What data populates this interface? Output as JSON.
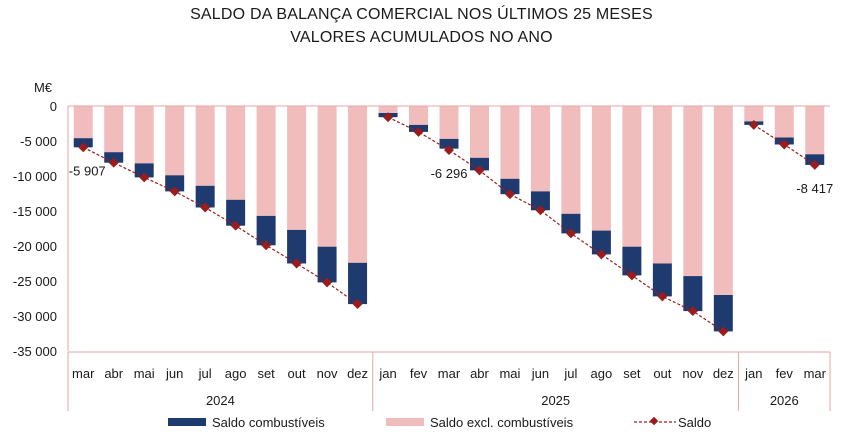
{
  "chart_data": {
    "type": "bar",
    "title": "SALDO DA BALANÇA COMERCIAL NOS ÚLTIMOS 25 MESES",
    "subtitle": "VALORES ACUMULADOS NO ANO",
    "ylabel": "M€",
    "ylim": [
      -35000,
      0
    ],
    "yticks": [
      0,
      -5000,
      -10000,
      -15000,
      -20000,
      -25000,
      -30000,
      -35000
    ],
    "ytick_labels": [
      "0",
      "-5 000",
      "-10 000",
      "-15 000",
      "-20 000",
      "-25 000",
      "-30 000",
      "-35 000"
    ],
    "stacked": true,
    "grid": false,
    "legend_position": "bottom",
    "categories": [
      "mar",
      "abr",
      "mai",
      "jun",
      "jul",
      "ago",
      "set",
      "out",
      "nov",
      "dez",
      "jan",
      "fev",
      "mar",
      "abr",
      "mai",
      "jun",
      "jul",
      "ago",
      "set",
      "out",
      "nov",
      "dez",
      "jan",
      "fev",
      "mar"
    ],
    "groups": [
      {
        "label": "2024",
        "count": 10
      },
      {
        "label": "2025",
        "count": 12
      },
      {
        "label": "2026",
        "count": 3
      }
    ],
    "series": [
      {
        "name": "Saldo excl. combustíveis",
        "color": "#f0bcbc",
        "kind": "bar",
        "values": [
          -4600,
          -6600,
          -8200,
          -9900,
          -11400,
          -13400,
          -15700,
          -17700,
          -20100,
          -22400,
          -1000,
          -2700,
          -4700,
          -7400,
          -10400,
          -12200,
          -15400,
          -17800,
          -20100,
          -22500,
          -24300,
          -27000,
          -2200,
          -4500,
          -6900
        ]
      },
      {
        "name": "Saldo combustíveis",
        "color": "#1f3a6e",
        "kind": "bar",
        "values": [
          -1307,
          -1500,
          -2000,
          -2300,
          -3100,
          -3700,
          -4200,
          -4800,
          -5100,
          -5900,
          -600,
          -1000,
          -1396,
          -1800,
          -2200,
          -2700,
          -2800,
          -3400,
          -4100,
          -4700,
          -5000,
          -5200,
          -500,
          -1000,
          -1517
        ]
      },
      {
        "name": "Saldo",
        "color": "#9b1c1c",
        "kind": "line",
        "values": [
          -5907,
          -8100,
          -10200,
          -12200,
          -14500,
          -17100,
          -19900,
          -22500,
          -25200,
          -28300,
          -1600,
          -3700,
          -6296,
          -9200,
          -12600,
          -14900,
          -18200,
          -21200,
          -24200,
          -27200,
          -29300,
          -32200,
          -2700,
          -5500,
          -8417
        ]
      }
    ],
    "annotations": [
      {
        "index": 0,
        "text": "-5 907"
      },
      {
        "index": 12,
        "text": "-6 296"
      },
      {
        "index": 24,
        "text": "-8 417"
      }
    ]
  },
  "legend": {
    "item1": "Saldo combustíveis",
    "item2": "Saldo excl. combustíveis",
    "item3": "Saldo"
  }
}
